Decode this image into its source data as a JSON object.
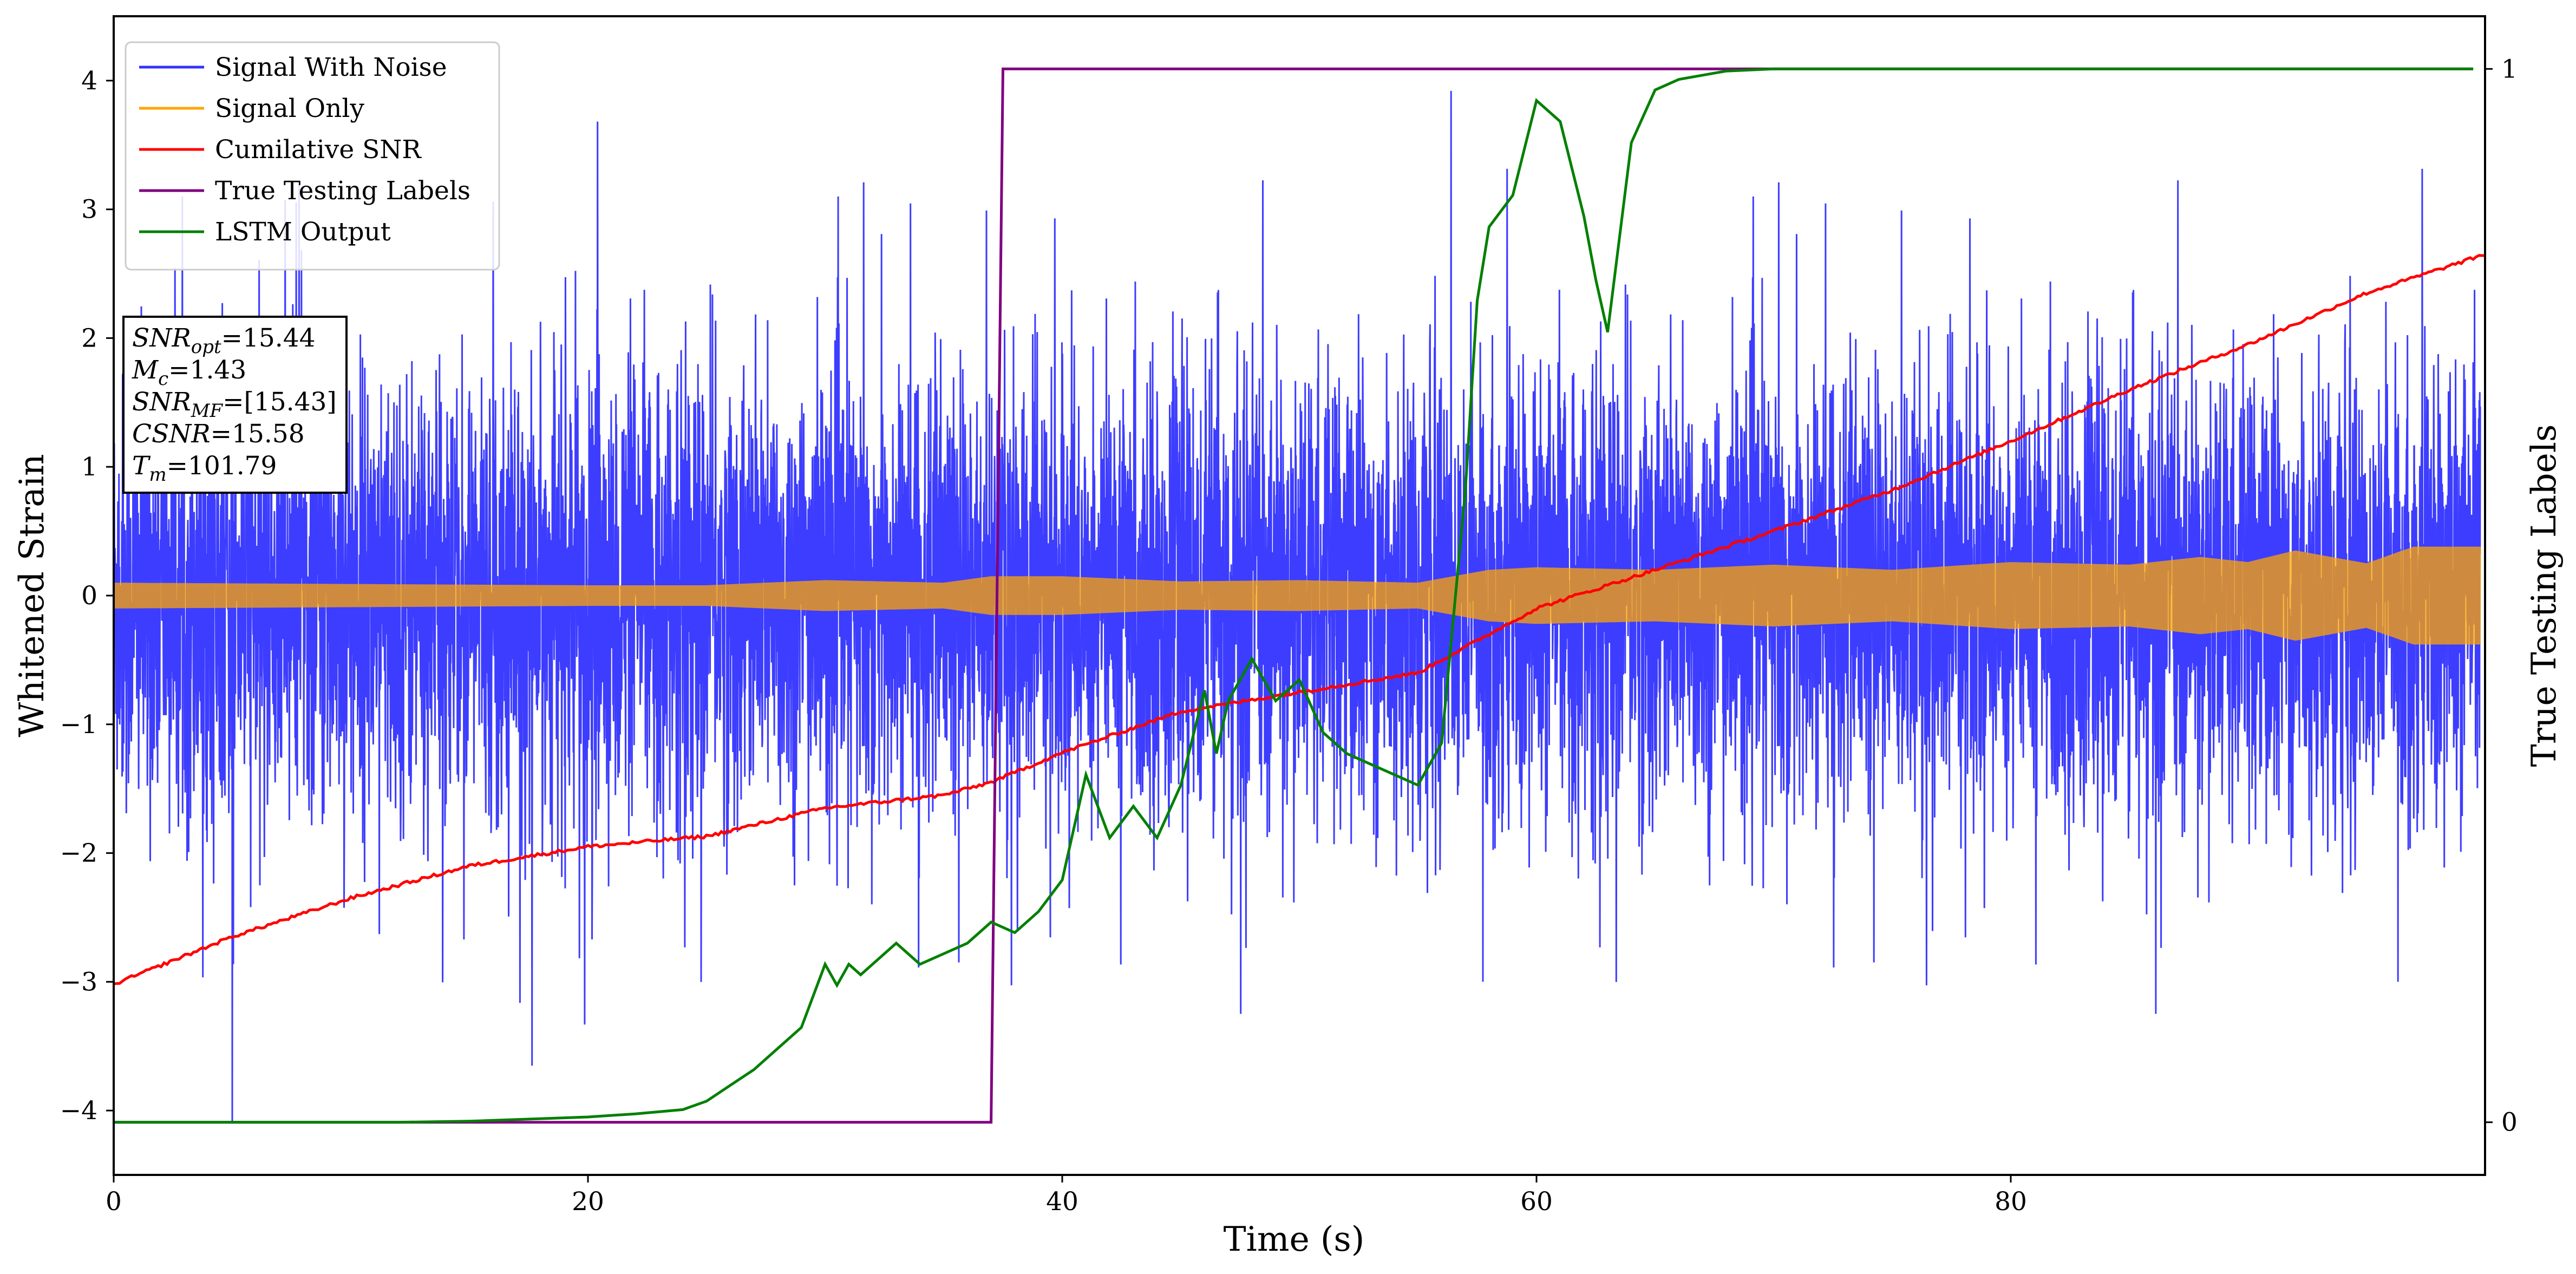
{
  "chart_data": {
    "type": "line",
    "xlabel": "Time (s)",
    "ylabel": "Whitened Strain",
    "y2label": "True Testing Labels",
    "xlim": [
      0,
      100
    ],
    "ylim": [
      -4.5,
      4.5
    ],
    "y2lim": [
      -0.05,
      1.05
    ],
    "xticks": [
      0,
      20,
      40,
      60,
      80
    ],
    "yticks": [
      -4,
      -3,
      -2,
      -1,
      0,
      1,
      2,
      3,
      4
    ],
    "y2ticks": [
      0,
      1
    ],
    "xticklabels": [
      "0",
      "20",
      "40",
      "60",
      "80"
    ],
    "yticklabels": [
      "−4",
      "−3",
      "−2",
      "−1",
      "0",
      "1",
      "2",
      "3",
      "4"
    ],
    "y2ticklabels": [
      "0",
      "1"
    ],
    "grid": false,
    "legend_position": "top-left",
    "series": [
      {
        "name": "Signal With Noise",
        "color": "#3333ff",
        "axis": "left",
        "style": "dense noise, typical range -2 to 2, spikes to about ±3.9",
        "typical_amplitude": 2.0,
        "peak_max": 3.92,
        "peak_min": -4.1
      },
      {
        "name": "Signal Only",
        "color": "#ffa500",
        "axis": "left",
        "style": "high-frequency oscillation, envelope amplitude over time",
        "envelope": {
          "x": [
            0,
            10,
            20,
            25,
            30,
            35,
            37,
            40,
            45,
            50,
            55,
            58,
            60,
            65,
            70,
            75,
            80,
            85,
            88,
            90,
            92,
            95,
            97,
            99.8
          ],
          "y": [
            0.1,
            0.09,
            0.08,
            0.08,
            0.12,
            0.1,
            0.15,
            0.15,
            0.11,
            0.12,
            0.1,
            0.2,
            0.22,
            0.2,
            0.24,
            0.2,
            0.26,
            0.24,
            0.3,
            0.26,
            0.35,
            0.25,
            0.38,
            0.38
          ]
        }
      },
      {
        "name": "Cumilative SNR",
        "color": "#ff0000",
        "axis": "left",
        "x": [
          0,
          5,
          10,
          15,
          20,
          25,
          30,
          35,
          37,
          40,
          45,
          50,
          55,
          60,
          65,
          70,
          75,
          80,
          85,
          90,
          95,
          100
        ],
        "y": [
          -3.02,
          -2.65,
          -2.35,
          -2.1,
          -1.95,
          -1.87,
          -1.65,
          -1.55,
          -1.45,
          -1.22,
          -0.9,
          -0.75,
          -0.6,
          -0.1,
          0.2,
          0.5,
          0.82,
          1.2,
          1.6,
          1.95,
          2.35,
          2.65
        ]
      },
      {
        "name": "True Testing Labels",
        "color": "#800080",
        "axis": "right",
        "x": [
          0,
          37.0,
          37.5,
          99.5
        ],
        "y": [
          0,
          0,
          1,
          1
        ]
      },
      {
        "name": "LSTM Output",
        "color": "#008000",
        "axis": "right",
        "x": [
          0,
          12,
          15,
          20,
          22,
          24,
          25,
          26,
          27,
          28,
          29,
          30,
          30.5,
          31,
          31.5,
          32,
          33,
          34,
          35,
          36,
          37,
          38,
          39,
          40,
          41,
          42,
          43,
          44,
          45,
          46,
          46.5,
          47,
          48,
          49,
          50,
          51,
          52,
          53,
          54,
          55,
          56,
          57,
          57.5,
          58,
          59,
          60,
          61,
          62,
          62.5,
          63,
          64,
          65,
          66,
          68,
          70,
          80,
          90,
          99.5
        ],
        "y": [
          0,
          0,
          0.001,
          0.005,
          0.008,
          0.012,
          0.02,
          0.035,
          0.05,
          0.07,
          0.09,
          0.15,
          0.13,
          0.15,
          0.14,
          0.15,
          0.17,
          0.15,
          0.16,
          0.17,
          0.19,
          0.18,
          0.2,
          0.23,
          0.33,
          0.27,
          0.3,
          0.27,
          0.32,
          0.41,
          0.35,
          0.4,
          0.44,
          0.4,
          0.42,
          0.37,
          0.35,
          0.34,
          0.33,
          0.32,
          0.36,
          0.6,
          0.78,
          0.85,
          0.88,
          0.97,
          0.95,
          0.86,
          0.8,
          0.75,
          0.93,
          0.98,
          0.99,
          0.998,
          1.0,
          1.0,
          1.0,
          1.0
        ]
      }
    ],
    "annotations": [
      {
        "name": "SNR",
        "sub": "opt",
        "value": "=15.44"
      },
      {
        "name": "M",
        "sub": "c",
        "value": "=1.43"
      },
      {
        "name": "SNR",
        "sub": "MF",
        "value": "=[15.43]"
      },
      {
        "name": "CSNR",
        "sub": "",
        "value": "=15.58"
      },
      {
        "name": "T",
        "sub": "m",
        "value": "=101.79"
      }
    ]
  }
}
